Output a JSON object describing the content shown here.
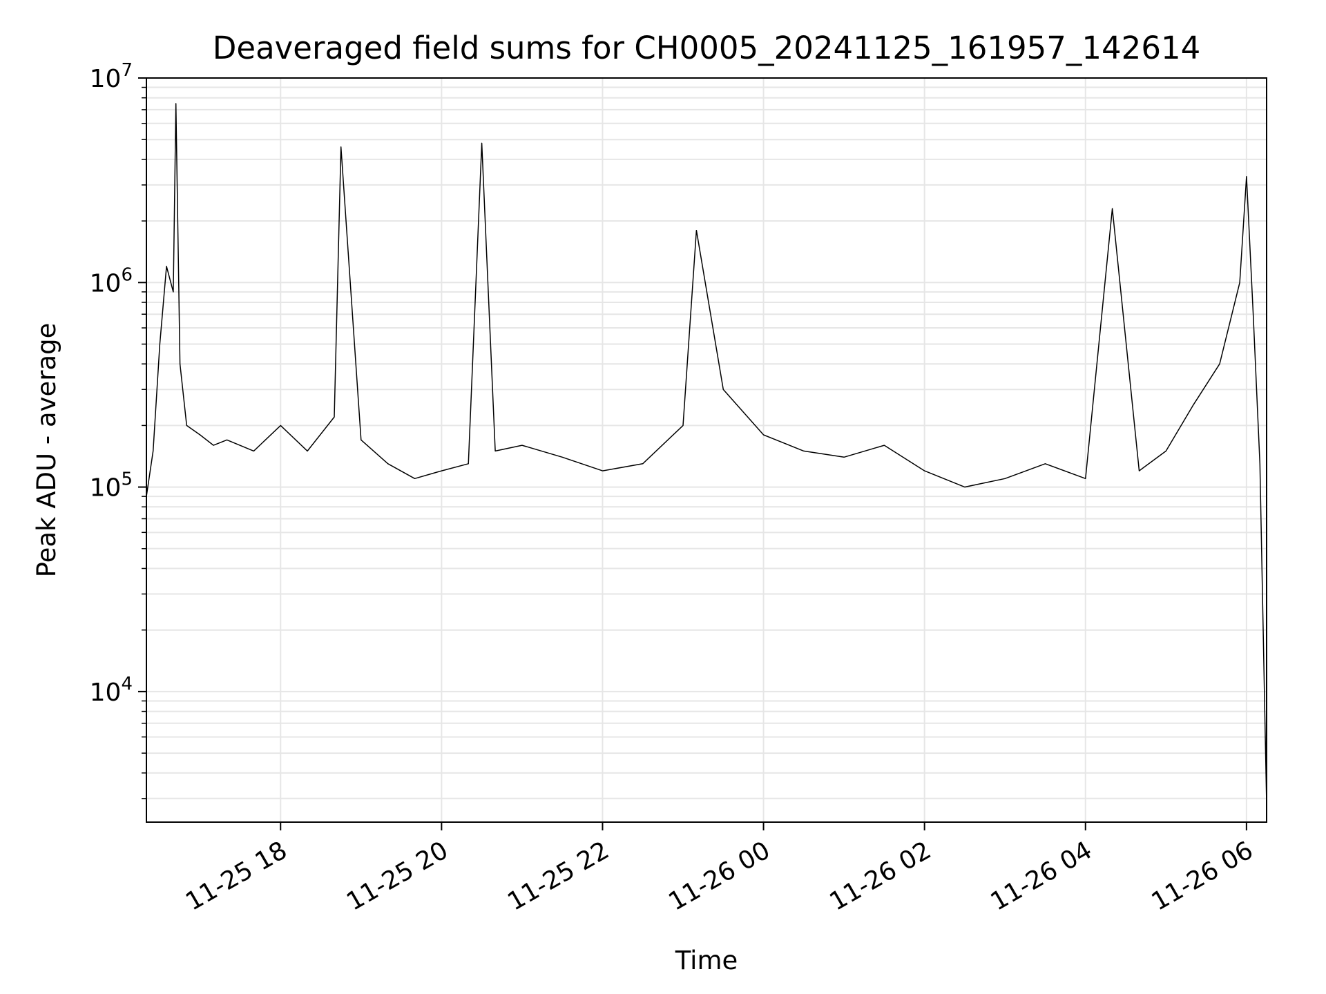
{
  "chart_data": {
    "type": "line",
    "title": "Deaveraged field sums for CH0005_20241125_161957_142614",
    "xlabel": "Time",
    "ylabel": "Peak ADU - average",
    "yscale": "log",
    "ylim": [
      2300,
      10000000
    ],
    "xlim": [
      "2024-11-25 16:20",
      "2024-11-26 06:15"
    ],
    "grid": true,
    "line_color": "#000000",
    "grid_color": "#e6e6e6",
    "x_ticks": [
      {
        "value": "2024-11-25 18:00",
        "label": "11-25 18"
      },
      {
        "value": "2024-11-25 20:00",
        "label": "11-25 20"
      },
      {
        "value": "2024-11-25 22:00",
        "label": "11-25 22"
      },
      {
        "value": "2024-11-26 00:00",
        "label": "11-26 00"
      },
      {
        "value": "2024-11-26 02:00",
        "label": "11-26 02"
      },
      {
        "value": "2024-11-26 04:00",
        "label": "11-26 04"
      },
      {
        "value": "2024-11-26 06:00",
        "label": "11-26 06"
      }
    ],
    "y_ticks": [
      {
        "value": 10000,
        "base": "10",
        "exp": "4"
      },
      {
        "value": 100000,
        "base": "10",
        "exp": "5"
      },
      {
        "value": 1000000,
        "base": "10",
        "exp": "6"
      },
      {
        "value": 10000000,
        "base": "10",
        "exp": "7"
      }
    ],
    "series": [
      {
        "x": [
          "2024-11-25 16:20",
          "2024-11-25 16:25",
          "2024-11-25 16:30",
          "2024-11-25 16:35",
          "2024-11-25 16:40",
          "2024-11-25 16:42",
          "2024-11-25 16:45",
          "2024-11-25 16:50",
          "2024-11-25 17:00",
          "2024-11-25 17:10",
          "2024-11-25 17:20",
          "2024-11-25 17:40",
          "2024-11-25 18:00",
          "2024-11-25 18:20",
          "2024-11-25 18:40",
          "2024-11-25 18:45",
          "2024-11-25 19:00",
          "2024-11-25 19:20",
          "2024-11-25 19:40",
          "2024-11-25 20:00",
          "2024-11-25 20:20",
          "2024-11-25 20:30",
          "2024-11-25 20:40",
          "2024-11-25 21:00",
          "2024-11-25 21:30",
          "2024-11-25 22:00",
          "2024-11-25 22:30",
          "2024-11-25 23:00",
          "2024-11-25 23:10",
          "2024-11-25 23:30",
          "2024-11-26 00:00",
          "2024-11-26 00:30",
          "2024-11-26 01:00",
          "2024-11-26 01:30",
          "2024-11-26 02:00",
          "2024-11-26 02:30",
          "2024-11-26 03:00",
          "2024-11-26 03:30",
          "2024-11-26 04:00",
          "2024-11-26 04:20",
          "2024-11-26 04:40",
          "2024-11-26 05:00",
          "2024-11-26 05:20",
          "2024-11-26 05:40",
          "2024-11-26 05:55",
          "2024-11-26 06:00",
          "2024-11-26 06:05",
          "2024-11-26 06:10",
          "2024-11-26 06:15"
        ],
        "y": [
          90000,
          150000,
          500000,
          1200000,
          900000,
          7500000,
          400000,
          200000,
          180000,
          160000,
          170000,
          150000,
          200000,
          150000,
          220000,
          4600000,
          170000,
          130000,
          110000,
          120000,
          130000,
          4800000,
          150000,
          160000,
          140000,
          120000,
          130000,
          200000,
          1800000,
          300000,
          180000,
          150000,
          140000,
          160000,
          120000,
          100000,
          110000,
          130000,
          110000,
          2300000,
          120000,
          150000,
          250000,
          400000,
          1000000,
          3300000,
          700000,
          130000,
          2800
        ]
      }
    ]
  }
}
